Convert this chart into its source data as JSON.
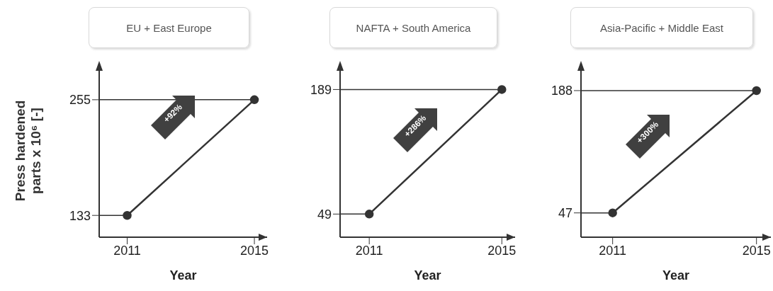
{
  "chart_data": [
    {
      "type": "line",
      "title": "EU + East Europe",
      "xlabel": "Year",
      "ylabel": "Press hardened parts x 10⁶ [-]",
      "categories": [
        "2011",
        "2015"
      ],
      "values": [
        133,
        255
      ],
      "color": "#333333",
      "marker": "circle",
      "ylim": [
        110,
        293
      ],
      "yticks": [
        133,
        255
      ],
      "annotations": [
        "+92%"
      ],
      "ref_lines": [
        {
          "axis": "y",
          "value": 133
        },
        {
          "axis": "y",
          "value": 255
        }
      ]
    },
    {
      "type": "line",
      "title": "NAFTA + South America",
      "xlabel": "Year",
      "categories": [
        "2011",
        "2015"
      ],
      "values": [
        49,
        189
      ],
      "color": "#333333",
      "marker": "circle",
      "ylim": [
        23,
        218
      ],
      "yticks": [
        49,
        189
      ],
      "annotations": [
        "+286%"
      ],
      "ref_lines": [
        {
          "axis": "y",
          "value": 49
        },
        {
          "axis": "y",
          "value": 189
        }
      ]
    },
    {
      "type": "line",
      "title": "Asia-Pacific + Middle East",
      "xlabel": "Year",
      "categories": [
        "2011",
        "2015"
      ],
      "values": [
        47,
        188
      ],
      "color": "#333333",
      "marker": "circle",
      "ylim": [
        19,
        219
      ],
      "yticks": [
        47,
        188
      ],
      "annotations": [
        "+300%"
      ],
      "ref_lines": [
        {
          "axis": "y",
          "value": 47
        },
        {
          "axis": "y",
          "value": 188
        }
      ]
    }
  ]
}
